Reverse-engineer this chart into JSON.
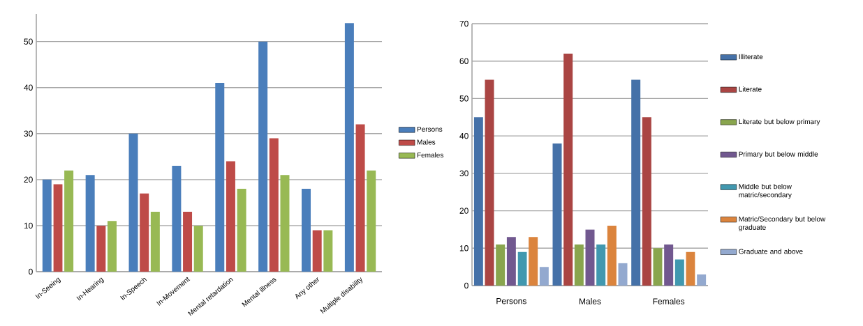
{
  "chart_data": [
    {
      "type": "bar",
      "categories": [
        "In-Seeing",
        "In-Hearing",
        "In-Speech",
        "In-Movement",
        "Mental retardation",
        "Mental illness",
        "Any other",
        "Multiple disability"
      ],
      "series": [
        {
          "name": "Persons",
          "color": "#4a7ebb",
          "values": [
            20,
            21,
            30,
            23,
            41,
            50,
            18,
            54
          ]
        },
        {
          "name": "Males",
          "color": "#be4b48",
          "values": [
            19,
            10,
            17,
            13,
            24,
            29,
            9,
            32
          ]
        },
        {
          "name": "Females",
          "color": "#98b954",
          "values": [
            22,
            11,
            13,
            10,
            18,
            21,
            9,
            22
          ]
        }
      ],
      "ylim": [
        0,
        56
      ],
      "yticks": [
        0,
        10,
        20,
        30,
        40,
        50
      ],
      "grid": "y",
      "legend": "right"
    },
    {
      "type": "bar",
      "categories": [
        "Persons",
        "Males",
        "Females"
      ],
      "series": [
        {
          "name": "Illiterate",
          "color": "#4571a8",
          "values": [
            45,
            38,
            55
          ]
        },
        {
          "name": "Literate",
          "color": "#aa4543",
          "values": [
            55,
            62,
            45
          ]
        },
        {
          "name": "Literate but below primary",
          "color": "#89a54e",
          "values": [
            11,
            11,
            10
          ]
        },
        {
          "name": "Primary but below middle",
          "color": "#71588f",
          "values": [
            13,
            15,
            11
          ]
        },
        {
          "name": "Middle but below matric/secondary",
          "color": "#4198af",
          "values": [
            9,
            11,
            7
          ]
        },
        {
          "name": "Matric/Secondary but below graduate",
          "color": "#db843d",
          "values": [
            13,
            16,
            9
          ]
        },
        {
          "name": "Graduate and above",
          "color": "#93a9cf",
          "values": [
            5,
            6,
            3
          ]
        }
      ],
      "ylim": [
        0,
        70
      ],
      "yticks": [
        0,
        10,
        20,
        30,
        40,
        50,
        60,
        70
      ],
      "grid": "y",
      "legend": "right"
    }
  ]
}
